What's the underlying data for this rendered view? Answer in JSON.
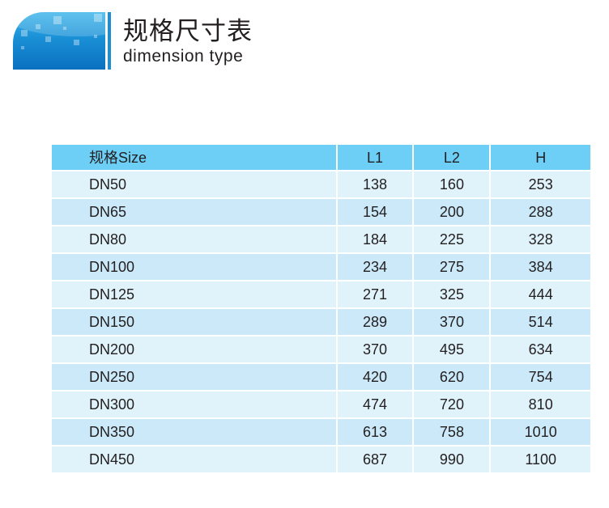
{
  "header": {
    "title": "规格尺寸表",
    "subtitle": "dimension type",
    "accent": "#1a8fd6"
  },
  "table": {
    "columns": [
      "规格Size",
      "L1",
      "L2",
      "H"
    ],
    "rows": [
      [
        "DN50",
        "138",
        "160",
        "253"
      ],
      [
        "DN65",
        "154",
        "200",
        "288"
      ],
      [
        "DN80",
        "184",
        "225",
        "328"
      ],
      [
        "DN100",
        "234",
        "275",
        "384"
      ],
      [
        "DN125",
        "271",
        "325",
        "444"
      ],
      [
        "DN150",
        "289",
        "370",
        "514"
      ],
      [
        "DN200",
        "370",
        "495",
        "634"
      ],
      [
        "DN250",
        "420",
        "620",
        "754"
      ],
      [
        "DN300",
        "474",
        "720",
        "810"
      ],
      [
        "DN350",
        "613",
        "758",
        "1010"
      ],
      [
        "DN450",
        "687",
        "990",
        "1100"
      ]
    ],
    "colors": {
      "header": "#6dcff6",
      "row_odd": "#e0f3fb",
      "row_even": "#cbe9f8"
    }
  }
}
